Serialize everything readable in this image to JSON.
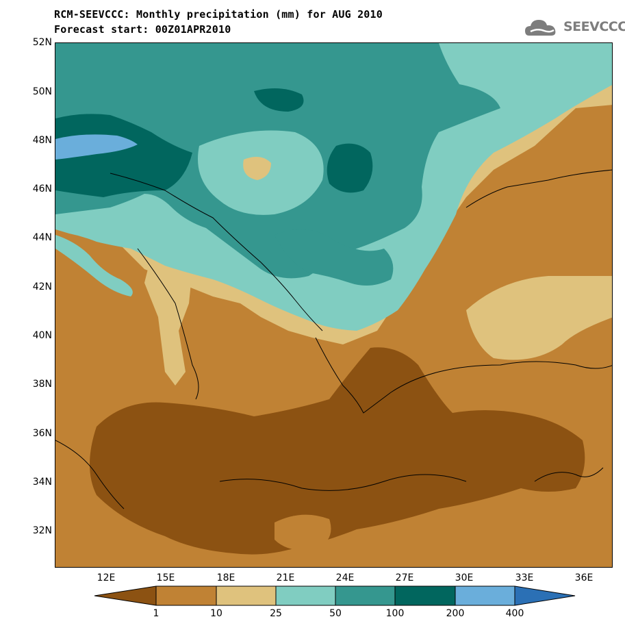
{
  "title": {
    "line1": "RCM-SEEVCCC: Monthly precipitation (mm) for AUG 2010",
    "line2": "Forecast start: 00Z01APR2010"
  },
  "logo": {
    "text": "SEEVCCC",
    "icon": "cloud-logo-icon",
    "color": "#7d7d7d"
  },
  "map": {
    "latitude_labels": [
      "52N",
      "50N",
      "48N",
      "46N",
      "44N",
      "42N",
      "40N",
      "38N",
      "36N",
      "34N",
      "32N"
    ],
    "longitude_labels": [
      "12E",
      "15E",
      "18E",
      "21E",
      "24E",
      "27E",
      "30E",
      "33E",
      "36E"
    ],
    "colors": {
      "lt1": "#8c5212",
      "r1_10": "#c08234",
      "r10_25": "#dfc27d",
      "r25_50": "#80cdc1",
      "r50_100": "#35978f",
      "r100_200": "#01665e",
      "r200_400": "#6aaedb",
      "gt400": "#2b70b5"
    }
  },
  "colorbar": {
    "ticks": [
      "1",
      "10",
      "25",
      "50",
      "100",
      "200",
      "400"
    ],
    "colors": [
      "#8c5212",
      "#c08234",
      "#dfc27d",
      "#80cdc1",
      "#35978f",
      "#01665e",
      "#6aaedb",
      "#2b70b5"
    ]
  }
}
